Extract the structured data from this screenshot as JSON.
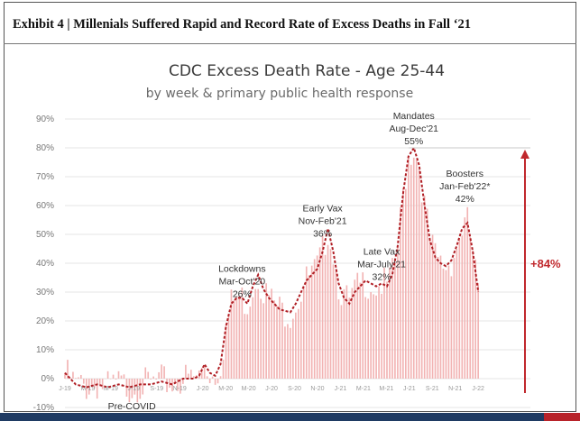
{
  "exhibit": {
    "title": "Exhibit 4 | Millenials Suffered Rapid and Record Rate of Excess Deaths in Fall ‘21"
  },
  "chart_data": {
    "type": "bar",
    "title": "CDC Excess Death Rate - Age 25-44",
    "subtitle": "by week & primary public health response",
    "ylim": [
      -10,
      90
    ],
    "yticks": [
      "-10%",
      "0%",
      "10%",
      "20%",
      "30%",
      "40%",
      "50%",
      "60%",
      "70%",
      "80%",
      "90%"
    ],
    "xtick_labels": [
      "J-19",
      "M-19",
      "M-19",
      "J-19",
      "S-19",
      "N-19",
      "J-20",
      "M-20",
      "M-20",
      "J-20",
      "S-20",
      "N-20",
      "J-21",
      "M-21",
      "M-21",
      "J-21",
      "S-21",
      "N-21",
      "J-22"
    ],
    "grid": true,
    "x_range": [
      0,
      160
    ],
    "trend_keypoints": [
      [
        0,
        2
      ],
      [
        4,
        -2
      ],
      [
        8,
        -3
      ],
      [
        12,
        -2
      ],
      [
        16,
        -3
      ],
      [
        20,
        -2
      ],
      [
        24,
        -3
      ],
      [
        28,
        -2
      ],
      [
        32,
        -2
      ],
      [
        36,
        -1
      ],
      [
        40,
        -2
      ],
      [
        44,
        0
      ],
      [
        48,
        0
      ],
      [
        50,
        1
      ],
      [
        52,
        5
      ],
      [
        54,
        2
      ],
      [
        56,
        1
      ],
      [
        58,
        5
      ],
      [
        60,
        18
      ],
      [
        62,
        26
      ],
      [
        64,
        28
      ],
      [
        66,
        28
      ],
      [
        68,
        26
      ],
      [
        70,
        32
      ],
      [
        72,
        36
      ],
      [
        74,
        31
      ],
      [
        76,
        28
      ],
      [
        78,
        26
      ],
      [
        80,
        24
      ],
      [
        84,
        23
      ],
      [
        86,
        26
      ],
      [
        88,
        30
      ],
      [
        90,
        34
      ],
      [
        92,
        36
      ],
      [
        94,
        38
      ],
      [
        96,
        44
      ],
      [
        98,
        52
      ],
      [
        100,
        44
      ],
      [
        102,
        33
      ],
      [
        104,
        28
      ],
      [
        106,
        26
      ],
      [
        108,
        30
      ],
      [
        110,
        32
      ],
      [
        112,
        34
      ],
      [
        114,
        33
      ],
      [
        116,
        32
      ],
      [
        118,
        33
      ],
      [
        120,
        32
      ],
      [
        122,
        36
      ],
      [
        124,
        46
      ],
      [
        126,
        64
      ],
      [
        128,
        77
      ],
      [
        130,
        80
      ],
      [
        132,
        74
      ],
      [
        134,
        60
      ],
      [
        136,
        48
      ],
      [
        138,
        42
      ],
      [
        140,
        40
      ],
      [
        142,
        39
      ],
      [
        144,
        41
      ],
      [
        146,
        46
      ],
      [
        148,
        52
      ],
      [
        150,
        54
      ],
      [
        152,
        44
      ],
      [
        154,
        30
      ]
    ],
    "annotations": [
      {
        "lines": [
          "Lockdowns",
          "Mar-Oct'20",
          "26%"
        ],
        "x": 66,
        "y": 37
      },
      {
        "lines": [
          "Early Vax",
          "Nov-Feb'21",
          "36%"
        ],
        "x": 96,
        "y": 58
      },
      {
        "lines": [
          "Late Vax",
          "Mar-July'21",
          "32%"
        ],
        "x": 118,
        "y": 43
      },
      {
        "lines": [
          "Mandates",
          "Aug-Dec'21",
          "55%"
        ],
        "x": 130,
        "y": 90
      },
      {
        "lines": [
          "Boosters",
          "Jan-Feb'22*",
          "42%"
        ],
        "x": 149,
        "y": 70
      }
    ],
    "period_label": "Pre-COVID",
    "period_label_pos": {
      "x": 16,
      "y": -10
    },
    "increase_label": "+84%",
    "colors": {
      "bar": "#f2b3b3",
      "trend": "#b01e24",
      "arrow": "#c0282d",
      "grid": "#e6e6e6"
    }
  }
}
